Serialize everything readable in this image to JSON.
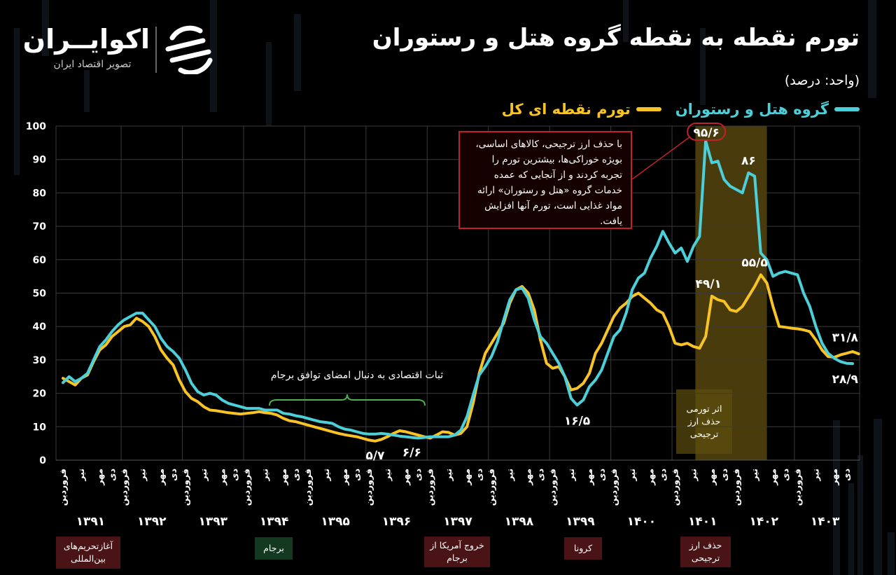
{
  "header": {
    "title": "تورم نقطه به نقطه گروه هتل و رستوران",
    "unit": "(واحد: درصد)"
  },
  "logo": {
    "name": "اکوایــران",
    "subtitle": "تصویر اقتصاد ایران"
  },
  "legend": {
    "hotel_label": "گروه هتل و رستوران",
    "overall_label": "تورم نقطه ای کل",
    "hotel_color": "#4ccfd8",
    "overall_color": "#f7c325"
  },
  "chart_data": {
    "type": "line",
    "ylim": [
      0,
      100
    ],
    "y_ticks": [
      "0",
      "10",
      "20",
      "30",
      "40",
      "50",
      "60",
      "70",
      "80",
      "90",
      "100"
    ],
    "x_count": 130,
    "month_labels": [
      "فروردین",
      "تیر",
      "مهر",
      "دی"
    ],
    "years": [
      "۱۳۹۱",
      "۱۳۹۲",
      "۱۳۹۳",
      "۱۳۹۴",
      "۱۳۹۵",
      "۱۳۹۶",
      "۱۳۹۷",
      "۱۳۹۸",
      "۱۳۹۹",
      "۱۴۰۰",
      "۱۴۰۱",
      "۱۴۰۲",
      "۱۴۰۳"
    ],
    "series": [
      {
        "name": "گروه هتل و رستوران",
        "color": "#4ccfd8",
        "values": [
          23.2,
          25.0,
          23.5,
          24.5,
          26.0,
          30.0,
          34.0,
          36.0,
          38.5,
          40.5,
          42.0,
          43.0,
          44.0,
          44.0,
          42.0,
          40.0,
          36.5,
          34.0,
          32.5,
          30.5,
          27.0,
          23.0,
          20.5,
          19.5,
          20.0,
          19.5,
          18.0,
          17.0,
          16.5,
          16.0,
          15.5,
          15.5,
          15.5,
          15.0,
          15.0,
          15.0,
          14.0,
          13.8,
          13.3,
          13.0,
          12.5,
          12.0,
          11.5,
          11.3,
          11.0,
          10.0,
          9.3,
          9.0,
          8.5,
          8.0,
          7.8,
          7.8,
          8.0,
          7.8,
          7.5,
          7.2,
          7.0,
          6.8,
          6.6,
          6.8,
          7.0,
          7.0,
          7.0,
          7.0,
          7.5,
          9.0,
          13.0,
          19.5,
          25.5,
          28.0,
          31.0,
          35.5,
          42.0,
          48.0,
          51.0,
          51.5,
          48.5,
          42.0,
          37.0,
          35.0,
          32.0,
          29.0,
          25.0,
          18.5,
          16.5,
          18.0,
          22.0,
          24.0,
          27.0,
          32.0,
          37.0,
          39.0,
          44.0,
          51.0,
          54.5,
          56.0,
          60.5,
          64.0,
          68.5,
          65.0,
          62.0,
          63.5,
          59.5,
          64.0,
          67.0,
          95.6,
          89.0,
          89.5,
          84.0,
          82.0,
          81.0,
          80.0,
          86.0,
          85.0,
          62.0,
          60.0,
          55.0,
          56.0,
          56.5,
          56.0,
          55.5,
          50.0,
          46.0,
          40.0,
          35.0,
          32.0,
          30.5,
          29.5,
          29.0,
          28.9
        ]
      },
      {
        "name": "تورم نقطه ای کل",
        "color": "#f7c325",
        "values": [
          24.5,
          23.5,
          22.5,
          24.5,
          25.5,
          29.5,
          33.0,
          34.5,
          37.0,
          38.5,
          40.0,
          40.5,
          42.5,
          41.5,
          40.0,
          37.0,
          33.0,
          30.5,
          28.5,
          24.0,
          20.5,
          18.5,
          17.5,
          16.0,
          15.0,
          14.8,
          14.5,
          14.2,
          14.0,
          13.8,
          14.0,
          14.2,
          14.5,
          14.2,
          14.0,
          13.5,
          12.5,
          11.8,
          11.5,
          11.0,
          10.5,
          10.0,
          9.5,
          9.0,
          8.5,
          8.0,
          7.6,
          7.3,
          7.0,
          6.5,
          6.0,
          5.7,
          6.2,
          7.0,
          8.0,
          8.8,
          8.5,
          8.0,
          7.5,
          7.0,
          6.6,
          7.5,
          8.5,
          8.3,
          7.5,
          8.0,
          10.0,
          17.0,
          26.0,
          32.0,
          35.0,
          38.0,
          41.0,
          47.0,
          51.0,
          52.0,
          50.0,
          45.0,
          36.0,
          29.0,
          27.5,
          28.0,
          25.0,
          21.0,
          21.5,
          23.0,
          26.0,
          32.0,
          35.0,
          39.0,
          43.0,
          45.5,
          47.0,
          49.0,
          50.0,
          48.5,
          47.0,
          45.0,
          44.0,
          40.0,
          35.0,
          34.5,
          35.0,
          34.0,
          33.5,
          37.0,
          49.1,
          48.0,
          47.5,
          45.0,
          44.5,
          46.0,
          49.0,
          52.0,
          55.5,
          53.0,
          46.0,
          40.0,
          39.8,
          39.5,
          39.3,
          39.0,
          38.5,
          36.0,
          33.0,
          31.0,
          30.8,
          31.5,
          32.0,
          32.5,
          31.8
        ]
      }
    ],
    "annotations": {
      "peak_hotel": "۹۵/۶",
      "hotel_86": "۸۶",
      "overall_551": "۵۵/۵",
      "overall_491": "۴۹/۱",
      "end_overall": "۳۱/۸",
      "end_hotel": "۲۸/۹",
      "low_165": "۱۶/۵",
      "low_57": "۵/۷",
      "low_66": "۶/۶",
      "stability": "ثبات اقتصادی به دنبال امضای توافق برجام",
      "highlight_caption": "اثر تورمی حذف ارز ترجیحی",
      "note_text": "با حذف ارز ترجیحی، کالاهای اساسی، بویژه خوراکی‌ها، بیشترین تورم را تجربه کردند و از آنجایی که عمده خدمات گروه «هتل و رستوران» ارائه مواد غذایی است، تورم آنها افزایش یافت."
    },
    "events": [
      {
        "label": "آغازتحریم‌های بین‌المللی",
        "color": "#4a1416"
      },
      {
        "label": "برجام",
        "color": "#133a20"
      },
      {
        "label": "خروج آمریکا از برجام",
        "color": "#4a1416"
      },
      {
        "label": "کرونا",
        "color": "#4a1416"
      },
      {
        "label": "حذف ارز ترجیحی",
        "color": "#4a1416"
      }
    ]
  }
}
